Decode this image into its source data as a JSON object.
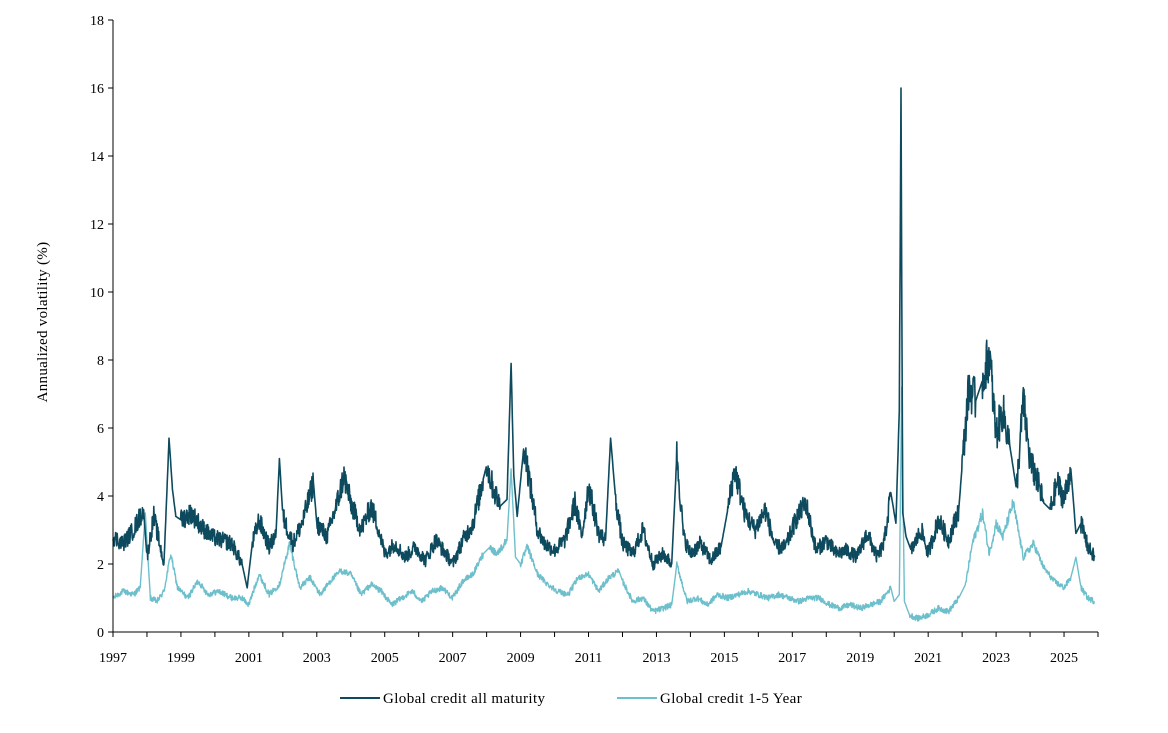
{
  "chart_data": {
    "type": "line",
    "title": "",
    "xlabel": "",
    "ylabel": "Annualized volatility (%)",
    "x_tick_labels": [
      "1997",
      "1999",
      "2001",
      "2003",
      "2005",
      "2007",
      "2009",
      "2011",
      "2013",
      "2015",
      "2017",
      "2019",
      "2021",
      "2023",
      "2025"
    ],
    "y_tick_labels": [
      "0",
      "2",
      "4",
      "6",
      "8",
      "10",
      "12",
      "14",
      "16",
      "18"
    ],
    "xlim": [
      1997,
      2026
    ],
    "ylim": [
      0,
      18
    ],
    "grid": false,
    "legend_position": "bottom",
    "colors": {
      "all_maturity": "#0d4a5e",
      "one_to_five": "#6cbfcb"
    },
    "series": [
      {
        "name": "Global credit all maturity",
        "x": [
          1997.0,
          1997.3,
          1997.6,
          1997.9,
          1998.0,
          1998.2,
          1998.5,
          1998.65,
          1998.75,
          1998.85,
          1999.0,
          1999.3,
          1999.6,
          1999.9,
          2000.2,
          2000.5,
          2000.8,
          2000.95,
          2001.1,
          2001.3,
          2001.6,
          2001.8,
          2001.9,
          2002.0,
          2002.3,
          2002.6,
          2002.9,
          2003.0,
          2003.3,
          2003.6,
          2003.8,
          2004.0,
          2004.3,
          2004.6,
          2004.8,
          2005.0,
          2005.3,
          2005.6,
          2005.9,
          2006.2,
          2006.5,
          2006.8,
          2007.0,
          2007.3,
          2007.6,
          2007.9,
          2008.0,
          2008.2,
          2008.4,
          2008.6,
          2008.72,
          2008.8,
          2008.9,
          2009.1,
          2009.3,
          2009.5,
          2009.7,
          2010.0,
          2010.3,
          2010.6,
          2010.8,
          2011.0,
          2011.3,
          2011.5,
          2011.65,
          2011.8,
          2012.0,
          2012.3,
          2012.6,
          2012.9,
          2013.2,
          2013.45,
          2013.6,
          2013.8,
          2014.0,
          2014.3,
          2014.6,
          2014.9,
          2015.1,
          2015.3,
          2015.6,
          2015.9,
          2016.2,
          2016.5,
          2016.8,
          2017.1,
          2017.4,
          2017.7,
          2018.0,
          2018.3,
          2018.6,
          2018.9,
          2019.2,
          2019.5,
          2019.7,
          2019.9,
          2020.05,
          2020.15,
          2020.2,
          2020.25,
          2020.35,
          2020.5,
          2020.8,
          2021.0,
          2021.3,
          2021.6,
          2021.9,
          2022.0,
          2022.2,
          2022.4,
          2022.6,
          2022.8,
          2023.0,
          2023.2,
          2023.4,
          2023.6,
          2023.8,
          2024.0,
          2024.2,
          2024.4,
          2024.6,
          2024.8,
          2025.0,
          2025.2,
          2025.35,
          2025.5,
          2025.7,
          2025.9
        ],
        "values": [
          2.8,
          2.6,
          3.0,
          3.6,
          2.2,
          3.4,
          2.0,
          5.7,
          4.2,
          3.4,
          3.3,
          3.5,
          3.1,
          2.8,
          2.7,
          2.6,
          2.0,
          1.3,
          2.6,
          3.3,
          2.5,
          2.9,
          5.1,
          3.4,
          2.6,
          3.3,
          4.4,
          3.2,
          2.8,
          3.8,
          4.6,
          3.8,
          3.0,
          3.7,
          3.1,
          2.3,
          2.6,
          2.2,
          2.5,
          2.1,
          2.7,
          2.3,
          2.0,
          2.7,
          3.2,
          4.5,
          4.9,
          4.2,
          3.7,
          3.9,
          7.9,
          4.6,
          3.4,
          5.5,
          4.2,
          3.0,
          2.6,
          2.4,
          2.7,
          3.8,
          2.8,
          4.3,
          2.9,
          2.7,
          5.7,
          3.9,
          2.6,
          2.3,
          3.0,
          2.0,
          2.3,
          2.0,
          5.2,
          2.8,
          2.3,
          2.6,
          2.1,
          2.5,
          3.6,
          4.8,
          3.5,
          3.0,
          3.6,
          2.5,
          2.5,
          3.3,
          3.8,
          2.4,
          2.7,
          2.3,
          2.4,
          2.2,
          2.9,
          2.2,
          2.6,
          4.1,
          3.2,
          6.5,
          16.0,
          3.5,
          2.8,
          2.4,
          3.0,
          2.3,
          3.3,
          2.7,
          3.6,
          4.9,
          7.2,
          6.8,
          7.4,
          8.2,
          5.8,
          6.5,
          5.5,
          4.2,
          6.8,
          5.0,
          4.5,
          3.8,
          3.6,
          4.4,
          3.9,
          4.8,
          2.9,
          3.2,
          2.5,
          2.2
        ]
      },
      {
        "name": "Global credit 1-5 Year",
        "x": [
          1997.0,
          1997.3,
          1997.6,
          1997.8,
          1997.95,
          1998.1,
          1998.3,
          1998.5,
          1998.7,
          1998.9,
          1999.2,
          1999.5,
          1999.8,
          2000.1,
          2000.5,
          2000.8,
          2001.0,
          2001.3,
          2001.6,
          2001.9,
          2002.2,
          2002.5,
          2002.8,
          2003.1,
          2003.4,
          2003.7,
          2004.0,
          2004.3,
          2004.6,
          2004.9,
          2005.2,
          2005.5,
          2005.8,
          2006.1,
          2006.4,
          2006.7,
          2007.0,
          2007.3,
          2007.6,
          2007.9,
          2008.1,
          2008.3,
          2008.6,
          2008.72,
          2008.85,
          2009.0,
          2009.2,
          2009.5,
          2009.8,
          2010.1,
          2010.4,
          2010.7,
          2011.0,
          2011.3,
          2011.6,
          2011.9,
          2012.0,
          2012.3,
          2012.6,
          2012.9,
          2013.2,
          2013.45,
          2013.6,
          2013.9,
          2014.2,
          2014.5,
          2014.8,
          2015.1,
          2015.4,
          2015.7,
          2016.0,
          2016.3,
          2016.6,
          2016.9,
          2017.2,
          2017.5,
          2017.8,
          2018.1,
          2018.4,
          2018.7,
          2019.0,
          2019.3,
          2019.6,
          2019.9,
          2020.0,
          2020.15,
          2020.22,
          2020.3,
          2020.45,
          2020.7,
          2021.0,
          2021.3,
          2021.6,
          2021.9,
          2022.1,
          2022.3,
          2022.6,
          2022.8,
          2023.0,
          2023.2,
          2023.5,
          2023.8,
          2024.1,
          2024.4,
          2024.7,
          2025.0,
          2025.2,
          2025.35,
          2025.5,
          2025.7,
          2025.9
        ],
        "values": [
          1.0,
          1.2,
          1.1,
          1.3,
          3.5,
          1.0,
          0.9,
          1.2,
          2.3,
          1.3,
          1.0,
          1.5,
          1.1,
          1.2,
          1.0,
          1.0,
          0.8,
          1.7,
          1.1,
          1.4,
          2.6,
          1.3,
          1.6,
          1.1,
          1.5,
          1.8,
          1.7,
          1.1,
          1.4,
          1.2,
          0.8,
          1.0,
          1.2,
          0.9,
          1.2,
          1.3,
          1.0,
          1.5,
          1.7,
          2.3,
          2.5,
          2.3,
          2.7,
          4.8,
          2.2,
          2.0,
          2.5,
          1.7,
          1.4,
          1.2,
          1.1,
          1.6,
          1.7,
          1.2,
          1.6,
          1.8,
          1.5,
          0.9,
          1.0,
          0.6,
          0.7,
          0.8,
          2.0,
          0.9,
          1.0,
          0.8,
          1.1,
          1.0,
          1.1,
          1.2,
          1.1,
          1.0,
          1.1,
          1.0,
          0.9,
          1.0,
          1.0,
          0.8,
          0.7,
          0.8,
          0.7,
          0.8,
          0.9,
          1.3,
          0.9,
          1.1,
          7.2,
          0.9,
          0.5,
          0.4,
          0.5,
          0.7,
          0.6,
          1.0,
          1.4,
          2.6,
          3.5,
          2.3,
          3.2,
          2.8,
          3.8,
          2.2,
          2.6,
          1.9,
          1.5,
          1.3,
          1.6,
          2.2,
          1.3,
          1.0,
          0.9
        ]
      }
    ]
  }
}
